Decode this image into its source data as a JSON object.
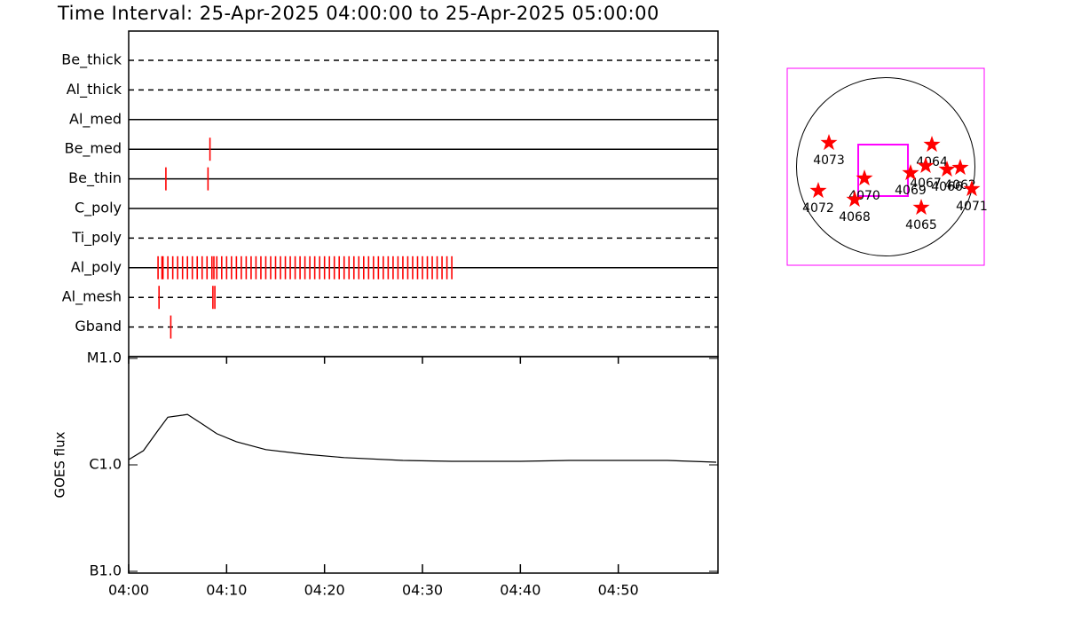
{
  "chart_data": [
    {
      "type": "event",
      "title": "Time Interval: 25-Apr-2025 04:00:00 to 25-Apr-2025 05:00:00",
      "xlim": [
        0,
        60
      ],
      "color": "#ff0000",
      "rows": [
        {
          "name": "Be_thick",
          "style": "dashed",
          "events": []
        },
        {
          "name": "Al_thick",
          "style": "dashed",
          "events": []
        },
        {
          "name": "Al_med",
          "style": "solid",
          "events": []
        },
        {
          "name": "Be_med",
          "style": "solid",
          "events": [
            8.3
          ]
        },
        {
          "name": "Be_thin",
          "style": "solid",
          "events": [
            3.8,
            8.1
          ]
        },
        {
          "name": "C_poly",
          "style": "solid",
          "events": []
        },
        {
          "name": "Ti_poly",
          "style": "dashed",
          "events": []
        },
        {
          "name": "Al_poly",
          "style": "solid",
          "events": [
            3.0,
            3.4,
            3.5,
            4.0,
            4.5,
            5.0,
            5.5,
            6.0,
            6.5,
            7.0,
            7.5,
            8.0,
            8.5,
            8.7,
            9.0,
            9.5,
            10.0,
            10.5,
            11.0,
            11.5,
            12.0,
            12.5,
            13.0,
            13.5,
            14.0,
            14.5,
            15.0,
            15.5,
            16.0,
            16.5,
            17.0,
            17.5,
            18.0,
            18.5,
            19.0,
            19.5,
            20.0,
            20.5,
            21.0,
            21.5,
            22.0,
            22.5,
            23.0,
            23.5,
            24.0,
            24.5,
            25.0,
            25.5,
            26.0,
            26.5,
            27.0,
            27.5,
            28.0,
            28.5,
            29.0,
            29.5,
            30.0,
            30.5,
            31.0,
            31.5,
            32.0,
            32.5,
            33.0
          ]
        },
        {
          "name": "Al_mesh",
          "style": "dashed",
          "events": [
            3.1,
            8.6,
            8.8
          ]
        },
        {
          "name": "Gband",
          "style": "dashed",
          "events": [
            4.3
          ]
        }
      ]
    },
    {
      "type": "line",
      "ylabel": "GOES flux",
      "log": true,
      "color": "#000000",
      "xlim": [
        0,
        60
      ],
      "ylim": [
        1e-07,
        1e-05
      ],
      "yticks": [
        {
          "value": 1e-07,
          "label": "B1.0"
        },
        {
          "value": 1e-06,
          "label": "C1.0"
        },
        {
          "value": 1e-05,
          "label": "M1.0"
        }
      ],
      "xticks": [
        {
          "value": 0,
          "label": "04:00"
        },
        {
          "value": 10,
          "label": "04:10"
        },
        {
          "value": 20,
          "label": "04:20"
        },
        {
          "value": 30,
          "label": "04:30"
        },
        {
          "value": 40,
          "label": "04:40"
        },
        {
          "value": 50,
          "label": "04:50"
        }
      ],
      "x": [
        0,
        1.5,
        3,
        4,
        5.5,
        6,
        7.5,
        9,
        11,
        14,
        18,
        22,
        28,
        33,
        40,
        45,
        50,
        55,
        60
      ],
      "values": [
        1.12e-06,
        1.36e-06,
        2.11e-06,
        2.8e-06,
        2.93e-06,
        2.98e-06,
        2.42e-06,
        1.96e-06,
        1.65e-06,
        1.39e-06,
        1.26e-06,
        1.17e-06,
        1.1e-06,
        1.08e-06,
        1.08e-06,
        1.1e-06,
        1.1e-06,
        1.1e-06,
        1.06e-06
      ]
    },
    {
      "type": "map",
      "xlim": [
        -1060,
        1060
      ],
      "ylim": [
        -1060,
        1060
      ],
      "sun_radius": 960,
      "color": "#ff0000",
      "box_color": "#ff00ff",
      "fov": {
        "xlim": [
          -296,
          239
        ],
        "ylim": [
          -315,
          239
        ]
      },
      "regions": [
        {
          "label": "4073",
          "x": -611,
          "y": 258
        },
        {
          "label": "4072",
          "x": -726,
          "y": -258
        },
        {
          "label": "4070",
          "x": -229,
          "y": -124
        },
        {
          "label": "4068",
          "x": -334,
          "y": -353
        },
        {
          "label": "4064",
          "x": 497,
          "y": 239
        },
        {
          "label": "4067",
          "x": 430,
          "y": 10
        },
        {
          "label": "4069",
          "x": 267,
          "y": -67
        },
        {
          "label": "4066",
          "x": 659,
          "y": -29
        },
        {
          "label": "4062",
          "x": 802,
          "y": -10
        },
        {
          "label": "4065",
          "x": 382,
          "y": -439
        },
        {
          "label": "4071",
          "x": 926,
          "y": -239
        }
      ]
    }
  ]
}
